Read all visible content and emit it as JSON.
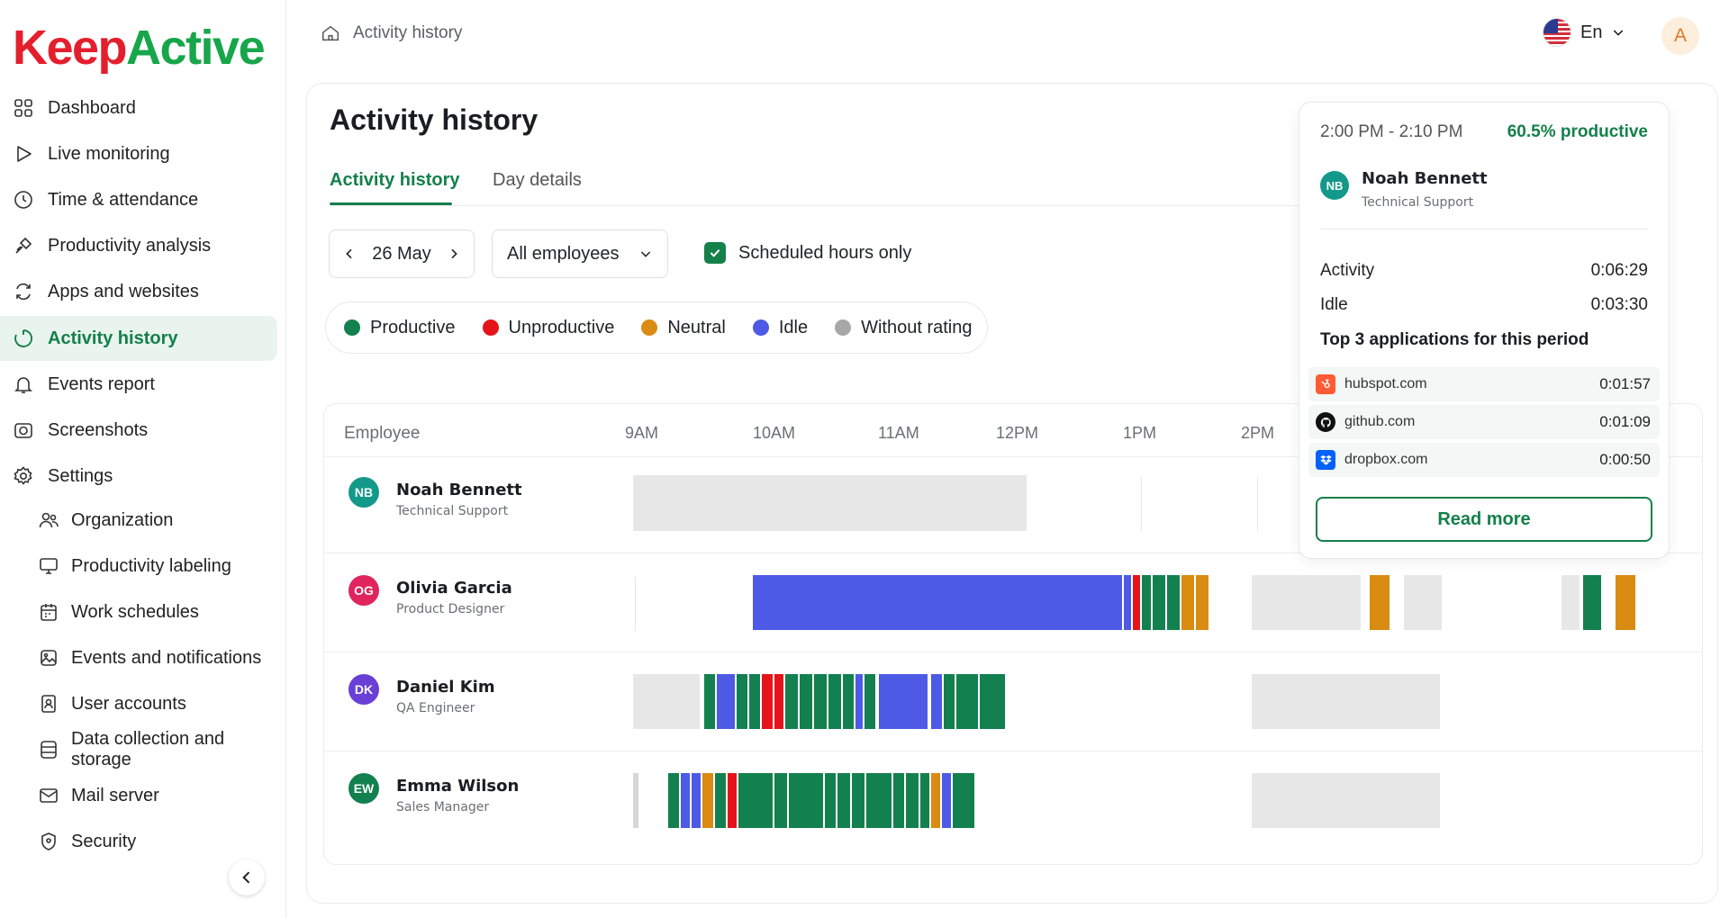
{
  "brand": {
    "part1": "Keep",
    "part2": "Active"
  },
  "sidebar": {
    "items": [
      {
        "label": "Dashboard",
        "icon": "grid-icon"
      },
      {
        "label": "Live monitoring",
        "icon": "play-icon"
      },
      {
        "label": "Time & attendance",
        "icon": "clock-icon"
      },
      {
        "label": "Productivity analysis",
        "icon": "wrench-icon"
      },
      {
        "label": "Apps and websites",
        "icon": "arrows-icon"
      },
      {
        "label": "Activity history",
        "icon": "history-icon"
      },
      {
        "label": "Events report",
        "icon": "bell-icon"
      },
      {
        "label": "Screenshots",
        "icon": "camera-icon"
      },
      {
        "label": "Settings",
        "icon": "gear-icon"
      }
    ],
    "sub_items": [
      {
        "label": "Organization",
        "icon": "people-icon"
      },
      {
        "label": "Productivity labeling",
        "icon": "monitor-icon"
      },
      {
        "label": "Work schedules",
        "icon": "calendar-icon"
      },
      {
        "label": "Events and notifications",
        "icon": "image-icon"
      },
      {
        "label": "User accounts",
        "icon": "user-badge-icon"
      },
      {
        "label": "Data collection and storage",
        "icon": "database-icon"
      },
      {
        "label": "Mail server",
        "icon": "mail-icon"
      },
      {
        "label": "Security",
        "icon": "shield-icon"
      }
    ]
  },
  "topbar": {
    "breadcrumb": "Activity history",
    "language": "En",
    "avatar_initial": "A"
  },
  "page": {
    "title": "Activity history",
    "tabs": [
      "Activity history",
      "Day details"
    ],
    "date": "26 May",
    "employee_filter": "All employees",
    "scheduled_only_label": "Scheduled hours only",
    "scheduled_only_checked": true
  },
  "legend": [
    {
      "label": "Productive",
      "color": "#13804f"
    },
    {
      "label": "Unproductive",
      "color": "#e5141b"
    },
    {
      "label": "Neutral",
      "color": "#d98b12"
    },
    {
      "label": "Idle",
      "color": "#4d5ae6"
    },
    {
      "label": "Without rating",
      "color": "#a8a8a8"
    }
  ],
  "table": {
    "employee_header": "Employee",
    "hours": [
      "9AM",
      "10AM",
      "11AM",
      "12PM",
      "1PM",
      "2PM"
    ],
    "rows": [
      {
        "initials": "NB",
        "name": "Noah Bennett",
        "role": "Technical Support",
        "avatar_color": "#13998a"
      },
      {
        "initials": "OG",
        "name": "Olivia Garcia",
        "role": "Product Designer",
        "avatar_color": "#e0245e"
      },
      {
        "initials": "DK",
        "name": "Daniel Kim",
        "role": "QA Engineer",
        "avatar_color": "#6a3fd6"
      },
      {
        "initials": "EW",
        "name": "Emma Wilson",
        "role": "Sales Manager",
        "avatar_color": "#13804f"
      }
    ]
  },
  "popup": {
    "time_range": "2:00 PM - 2:10 PM",
    "productive": "60.5% productive",
    "initials": "NB",
    "name": "Noah Bennett",
    "role": "Technical Support",
    "activity_label": "Activity",
    "activity_value": "0:06:29",
    "idle_label": "Idle",
    "idle_value": "0:03:30",
    "top_title": "Top 3 applications for this period",
    "apps": [
      {
        "name": "hubspot.com",
        "time": "0:01:57",
        "color": "#ff5c35",
        "icon": "hubspot-icon"
      },
      {
        "name": "github.com",
        "time": "0:01:09",
        "color": "#111111",
        "icon": "github-icon"
      },
      {
        "name": "dropbox.com",
        "time": "0:00:50",
        "color": "#0061ff",
        "icon": "dropbox-icon"
      }
    ],
    "read_more": "Read more"
  }
}
